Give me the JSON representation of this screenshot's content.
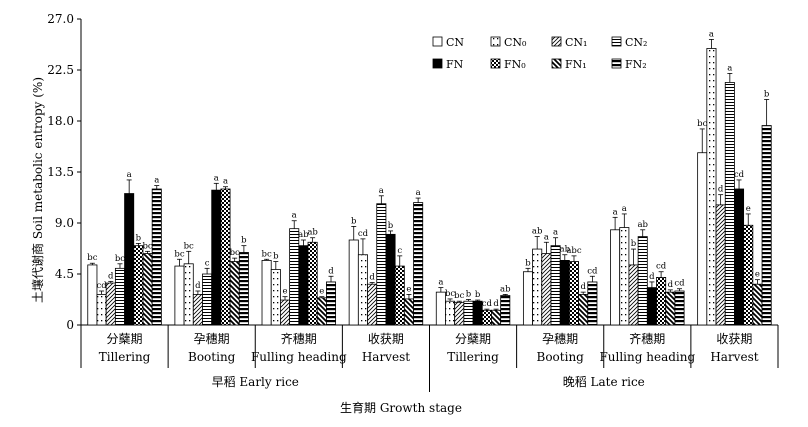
{
  "chart_data": {
    "type": "bar",
    "ylabel": "土壤代谢商 Soil metabolic entropy (%)",
    "xlabel": "生育期 Growth stage",
    "ylim": [
      0,
      27
    ],
    "yticks": [
      "0",
      "4.5",
      "9.0",
      "13.5",
      "18.0",
      "22.5",
      "27.0"
    ],
    "legend_position": "top-right",
    "groups": [
      {
        "label": "早稻 Early rice",
        "stages": [
          0,
          1,
          2,
          3
        ]
      },
      {
        "label": "晚稻 Late rice",
        "stages": [
          4,
          5,
          6,
          7
        ]
      }
    ],
    "stages": [
      {
        "cn": "分蘖期",
        "en": "Tillering"
      },
      {
        "cn": "孕穗期",
        "en": "Booting"
      },
      {
        "cn": "齐穗期",
        "en": "Fulling heading"
      },
      {
        "cn": "收获期",
        "en": "Harvest"
      },
      {
        "cn": "分蘖期",
        "en": "Tillering"
      },
      {
        "cn": "孕穗期",
        "en": "Booting"
      },
      {
        "cn": "齐穗期",
        "en": "Fulling heading"
      },
      {
        "cn": "收获期",
        "en": "Harvest"
      }
    ],
    "series": [
      {
        "name": "CN",
        "pattern": "open",
        "values": [
          5.3,
          5.2,
          5.7,
          7.5,
          2.9,
          4.7,
          8.4,
          15.2
        ],
        "errors": [
          0.15,
          0.6,
          0.1,
          1.2,
          0.4,
          0.3,
          1.1,
          2.1
        ],
        "letters": [
          "bc",
          "bc",
          "bc",
          "b",
          "a",
          "b",
          "a",
          "bc"
        ]
      },
      {
        "name": "CN₀",
        "pattern": "dots",
        "values": [
          2.7,
          5.4,
          4.9,
          6.2,
          2.1,
          6.7,
          8.6,
          24.4
        ],
        "errors": [
          0.3,
          1.1,
          0.7,
          1.4,
          0.2,
          1.1,
          1.2,
          0.8
        ],
        "letters": [
          "cd",
          "bc",
          "b",
          "cd",
          "bc",
          "ab",
          "a",
          "a"
        ]
      },
      {
        "name": "CN₁",
        "pattern": "diag",
        "values": [
          3.7,
          2.7,
          2.2,
          3.6,
          2.0,
          6.3,
          5.3,
          10.6
        ],
        "errors": [
          0.15,
          0.3,
          0.3,
          0.15,
          0.1,
          1.0,
          1.4,
          0.9
        ],
        "letters": [
          "d",
          "d",
          "e",
          "d",
          "bc",
          "a",
          "b",
          "d"
        ]
      },
      {
        "name": "CN₂",
        "pattern": "hstripe",
        "values": [
          5.0,
          4.5,
          8.5,
          10.7,
          2.1,
          7.0,
          7.8,
          21.4
        ],
        "errors": [
          0.4,
          0.5,
          0.7,
          0.7,
          0.15,
          0.7,
          0.6,
          0.8
        ],
        "letters": [
          "bc",
          "c",
          "a",
          "a",
          "b",
          "a",
          "ab",
          "a"
        ]
      },
      {
        "name": "FN",
        "pattern": "solid",
        "values": [
          11.6,
          11.9,
          7.0,
          8.0,
          2.1,
          5.7,
          3.3,
          12.0
        ],
        "errors": [
          1.2,
          0.6,
          0.5,
          0.3,
          0.1,
          0.5,
          0.5,
          0.8
        ],
        "letters": [
          "a",
          "a",
          "ab",
          "b",
          "b",
          "ab",
          "d",
          "cd"
        ]
      },
      {
        "name": "FN₀",
        "pattern": "checker",
        "values": [
          7.0,
          12.0,
          7.3,
          5.2,
          1.3,
          5.6,
          4.2,
          8.8
        ],
        "errors": [
          0.2,
          0.2,
          0.4,
          0.9,
          0.1,
          0.5,
          0.5,
          1.0
        ],
        "letters": [
          "b",
          "a",
          "ab",
          "c",
          "cd",
          "abc",
          "cd",
          "e"
        ]
      },
      {
        "name": "FN₁",
        "pattern": "bolddiag",
        "values": [
          6.3,
          5.6,
          2.4,
          2.3,
          1.3,
          2.7,
          2.9,
          3.6
        ],
        "errors": [
          0.2,
          0.3,
          0.1,
          0.4,
          0.1,
          0.2,
          0.2,
          0.4
        ],
        "letters": [
          "bc",
          "bc",
          "e",
          "e",
          "d",
          "d",
          "d",
          "e"
        ]
      },
      {
        "name": "FN₂",
        "pattern": "boldhstripe",
        "values": [
          12.0,
          6.4,
          3.8,
          10.8,
          2.6,
          3.8,
          3.0,
          17.6
        ],
        "errors": [
          0.3,
          0.6,
          0.5,
          0.4,
          0.1,
          0.5,
          0.2,
          2.3
        ],
        "letters": [
          "a",
          "b",
          "d",
          "a",
          "ab",
          "cd",
          "cd",
          "b"
        ]
      }
    ]
  }
}
